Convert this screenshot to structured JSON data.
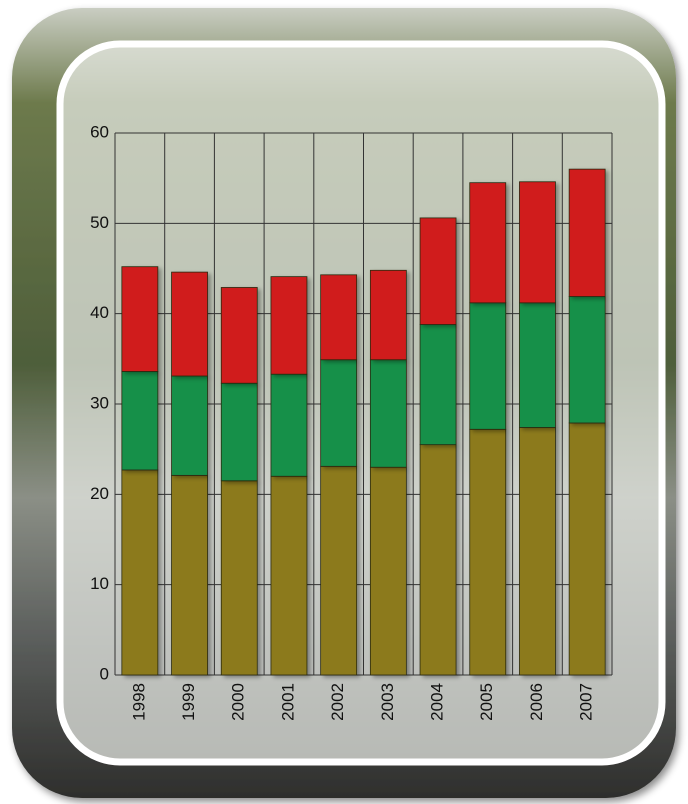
{
  "chart_data": {
    "type": "stacked-bar",
    "categories": [
      "1998",
      "1999",
      "2000",
      "2001",
      "2002",
      "2003",
      "2004",
      "2005",
      "2006",
      "2007"
    ],
    "series": [
      {
        "color": "#8c7a1e",
        "values": [
          22.7,
          22.1,
          21.5,
          22.0,
          23.1,
          23.0,
          25.5,
          27.2,
          27.4,
          27.9
        ]
      },
      {
        "color": "#12904a",
        "values": [
          10.9,
          11.0,
          10.8,
          11.3,
          11.8,
          11.9,
          13.3,
          14.0,
          13.8,
          14.0
        ]
      },
      {
        "color": "#d01a1e",
        "values": [
          11.6,
          11.5,
          10.6,
          10.8,
          9.4,
          9.9,
          11.8,
          13.3,
          13.4,
          14.1
        ]
      }
    ],
    "ylim": [
      0,
      60
    ],
    "yticks": [
      0,
      10,
      20,
      30,
      40,
      50,
      60
    ],
    "grid": true
  }
}
